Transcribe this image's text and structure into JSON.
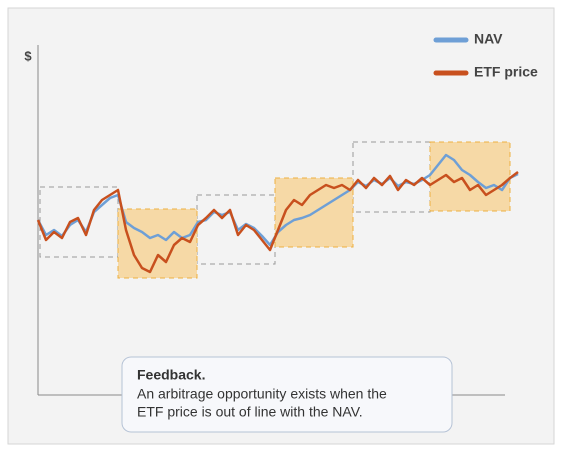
{
  "chart_data": {
    "type": "line",
    "y_label": "$",
    "ylim": [
      0,
      350
    ],
    "series": [
      {
        "name": "NAV",
        "color": "#6e9fd6",
        "values": [
          175,
          160,
          165,
          159,
          170,
          175,
          163,
          183,
          190,
          197,
          200,
          173,
          167,
          163,
          157,
          160,
          155,
          163,
          157,
          160,
          173,
          175,
          183,
          180,
          183,
          165,
          171,
          167,
          159,
          150,
          163,
          170,
          175,
          177,
          180,
          185,
          190,
          195,
          200,
          205,
          213,
          209,
          215,
          211,
          217,
          209,
          213,
          211,
          215,
          220,
          230,
          240,
          235,
          225,
          220,
          213,
          207,
          210,
          205,
          217,
          221
        ]
      },
      {
        "name": "ETF price",
        "color": "#c8501e",
        "values": [
          175,
          155,
          163,
          157,
          173,
          177,
          160,
          185,
          195,
          200,
          205,
          165,
          140,
          127,
          123,
          140,
          133,
          150,
          157,
          153,
          170,
          177,
          185,
          177,
          185,
          160,
          170,
          165,
          155,
          145,
          165,
          185,
          195,
          190,
          200,
          205,
          210,
          207,
          210,
          205,
          215,
          207,
          217,
          210,
          219,
          205,
          215,
          210,
          217,
          210,
          215,
          220,
          213,
          217,
          205,
          210,
          200,
          205,
          210,
          217,
          223
        ]
      }
    ],
    "legend": "top-right"
  },
  "feedback": {
    "title": "Feedback.",
    "lines": [
      "An arbitrage opportunity exists when the",
      "ETF price is out of line with the NAV."
    ]
  }
}
